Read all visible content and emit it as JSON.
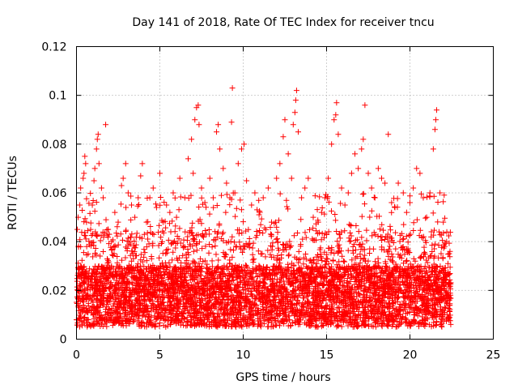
{
  "chart_data": {
    "type": "scatter",
    "title": "Day 141 of 2018, Rate Of TEC Index for receiver tncu",
    "xlabel": "GPS time / hours",
    "ylabel": "ROTI / TECUs",
    "xlim": [
      0,
      25
    ],
    "ylim": [
      0,
      0.12
    ],
    "x_ticks": [
      0,
      5,
      10,
      15,
      20,
      25
    ],
    "y_ticks": [
      0,
      0.02,
      0.04,
      0.06,
      0.08,
      0.1,
      0.12
    ],
    "x_tick_labels": [
      "0",
      "5",
      "10",
      "15",
      "20",
      "25"
    ],
    "y_tick_labels": [
      "0",
      "0.02",
      "0.04",
      "0.06",
      "0.08",
      "0.1",
      "0.12"
    ],
    "grid": true,
    "marker": "+",
    "color": "#ff0000",
    "series": [
      {
        "values": [
          [
            0.05,
            0.045
          ],
          [
            0.1,
            0.05
          ],
          [
            0.2,
            0.055
          ],
          [
            0.25,
            0.062
          ],
          [
            0.4,
            0.066
          ],
          [
            0.45,
            0.068
          ],
          [
            0.5,
            0.075
          ],
          [
            0.55,
            0.072
          ],
          [
            0.6,
            0.048
          ],
          [
            0.7,
            0.035
          ],
          [
            0.85,
            0.045
          ],
          [
            0.95,
            0.055
          ],
          [
            1.05,
            0.065
          ],
          [
            1.1,
            0.07
          ],
          [
            1.2,
            0.078
          ],
          [
            1.25,
            0.082
          ],
          [
            1.3,
            0.084
          ],
          [
            1.35,
            0.072
          ],
          [
            1.5,
            0.062
          ],
          [
            1.6,
            0.058
          ],
          [
            1.75,
            0.088
          ],
          [
            1.9,
            0.045
          ],
          [
            2.1,
            0.04
          ],
          [
            2.3,
            0.052
          ],
          [
            2.5,
            0.048
          ],
          [
            2.7,
            0.063
          ],
          [
            2.8,
            0.066
          ],
          [
            2.95,
            0.072
          ],
          [
            3.1,
            0.06
          ],
          [
            3.3,
            0.055
          ],
          [
            3.5,
            0.05
          ],
          [
            3.7,
            0.058
          ],
          [
            3.85,
            0.067
          ],
          [
            3.95,
            0.072
          ],
          [
            4.2,
            0.048
          ],
          [
            4.4,
            0.058
          ],
          [
            4.6,
            0.062
          ],
          [
            4.8,
            0.054
          ],
          [
            5.0,
            0.068
          ],
          [
            5.2,
            0.048
          ],
          [
            5.4,
            0.055
          ],
          [
            5.6,
            0.052
          ],
          [
            5.8,
            0.06
          ],
          [
            6.0,
            0.05
          ],
          [
            6.2,
            0.066
          ],
          [
            6.5,
            0.058
          ],
          [
            6.7,
            0.074
          ],
          [
            6.9,
            0.082
          ],
          [
            7.0,
            0.068
          ],
          [
            7.1,
            0.09
          ],
          [
            7.2,
            0.095
          ],
          [
            7.3,
            0.096
          ],
          [
            7.35,
            0.088
          ],
          [
            7.5,
            0.062
          ],
          [
            7.7,
            0.056
          ],
          [
            8.0,
            0.066
          ],
          [
            8.2,
            0.058
          ],
          [
            8.4,
            0.085
          ],
          [
            8.5,
            0.088
          ],
          [
            8.6,
            0.078
          ],
          [
            8.8,
            0.07
          ],
          [
            9.0,
            0.064
          ],
          [
            9.2,
            0.058
          ],
          [
            9.3,
            0.089
          ],
          [
            9.35,
            0.103
          ],
          [
            9.5,
            0.06
          ],
          [
            9.7,
            0.072
          ],
          [
            9.9,
            0.078
          ],
          [
            10.05,
            0.08
          ],
          [
            10.2,
            0.065
          ],
          [
            10.5,
            0.055
          ],
          [
            10.7,
            0.06
          ],
          [
            11.0,
            0.052
          ],
          [
            11.2,
            0.058
          ],
          [
            11.5,
            0.062
          ],
          [
            11.7,
            0.048
          ],
          [
            12.0,
            0.066
          ],
          [
            12.2,
            0.072
          ],
          [
            12.4,
            0.083
          ],
          [
            12.5,
            0.09
          ],
          [
            12.7,
            0.076
          ],
          [
            12.9,
            0.066
          ],
          [
            13.0,
            0.088
          ],
          [
            13.1,
            0.093
          ],
          [
            13.15,
            0.098
          ],
          [
            13.2,
            0.102
          ],
          [
            13.3,
            0.085
          ],
          [
            13.5,
            0.058
          ],
          [
            13.7,
            0.062
          ],
          [
            13.9,
            0.066
          ],
          [
            14.2,
            0.05
          ],
          [
            14.5,
            0.048
          ],
          [
            14.7,
            0.052
          ],
          [
            14.9,
            0.058
          ],
          [
            15.1,
            0.066
          ],
          [
            15.3,
            0.08
          ],
          [
            15.45,
            0.09
          ],
          [
            15.55,
            0.092
          ],
          [
            15.6,
            0.097
          ],
          [
            15.7,
            0.084
          ],
          [
            15.9,
            0.062
          ],
          [
            16.1,
            0.055
          ],
          [
            16.3,
            0.06
          ],
          [
            16.5,
            0.068
          ],
          [
            16.7,
            0.076
          ],
          [
            16.9,
            0.07
          ],
          [
            17.1,
            0.078
          ],
          [
            17.2,
            0.082
          ],
          [
            17.3,
            0.096
          ],
          [
            17.5,
            0.068
          ],
          [
            17.7,
            0.062
          ],
          [
            17.9,
            0.058
          ],
          [
            18.1,
            0.07
          ],
          [
            18.3,
            0.066
          ],
          [
            18.5,
            0.064
          ],
          [
            18.7,
            0.084
          ],
          [
            18.9,
            0.056
          ],
          [
            19.1,
            0.054
          ],
          [
            19.3,
            0.064
          ],
          [
            19.6,
            0.06
          ],
          [
            19.8,
            0.052
          ],
          [
            20.0,
            0.056
          ],
          [
            20.2,
            0.062
          ],
          [
            20.4,
            0.07
          ],
          [
            20.6,
            0.068
          ],
          [
            20.8,
            0.058
          ],
          [
            21.0,
            0.05
          ],
          [
            21.2,
            0.06
          ],
          [
            21.4,
            0.078
          ],
          [
            21.5,
            0.086
          ],
          [
            21.55,
            0.09
          ],
          [
            21.6,
            0.094
          ],
          [
            21.8,
            0.06
          ],
          [
            22.0,
            0.048
          ],
          [
            22.2,
            0.04
          ],
          [
            22.4,
            0.036
          ]
        ]
      }
    ]
  }
}
